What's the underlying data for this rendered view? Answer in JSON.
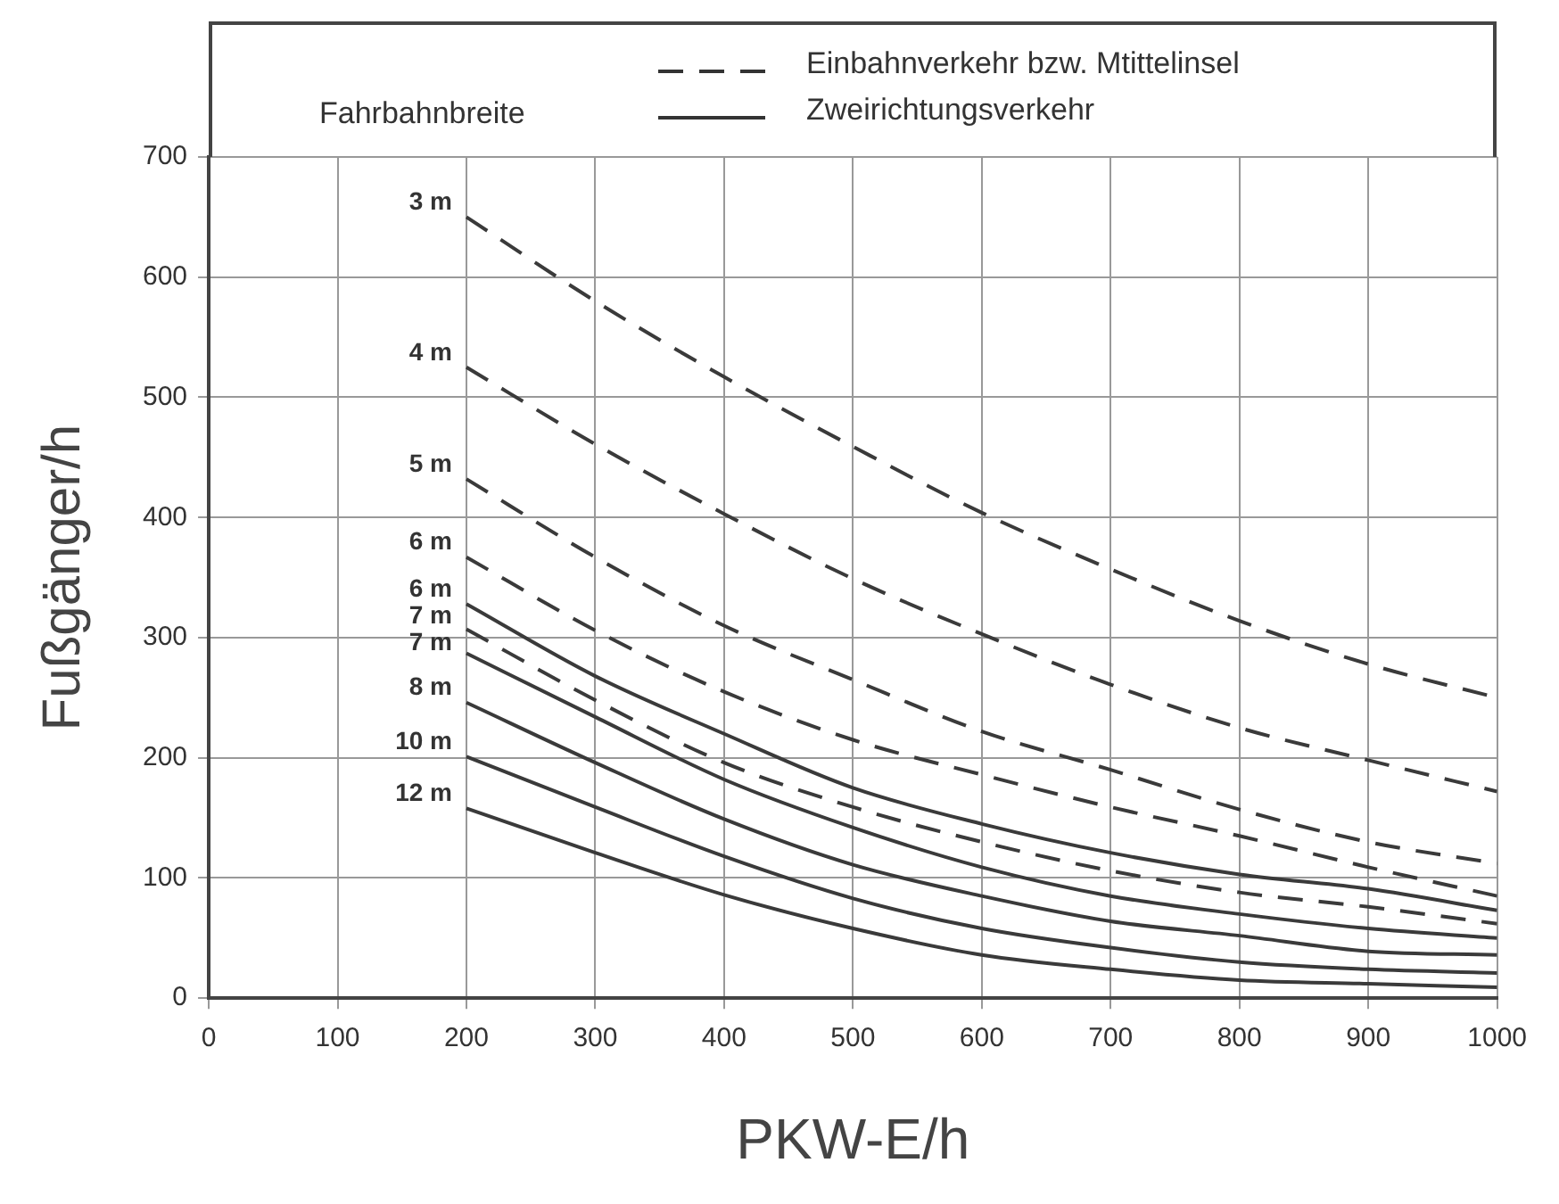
{
  "chart_data": {
    "type": "line",
    "x": [
      200,
      300,
      400,
      500,
      600,
      700,
      800,
      900,
      1000
    ],
    "series": [
      {
        "name": "3 m",
        "color": "#3a3a3a",
        "line_style": "dashed",
        "values": [
          650,
          580,
          517,
          459,
          404,
          357,
          314,
          278,
          250
        ]
      },
      {
        "name": "4 m",
        "color": "#3a3a3a",
        "line_style": "dashed",
        "values": [
          525,
          461,
          403,
          349,
          303,
          261,
          225,
          198,
          172
        ]
      },
      {
        "name": "5 m",
        "color": "#3a3a3a",
        "line_style": "dashed",
        "values": [
          432,
          367,
          310,
          265,
          222,
          190,
          157,
          130,
          112
        ]
      },
      {
        "name": "6 m",
        "color": "#3a3a3a",
        "line_style": "dashed",
        "values": [
          367,
          306,
          255,
          215,
          186,
          159,
          135,
          109,
          85
        ]
      },
      {
        "name": "6 m",
        "color": "#3a3a3a",
        "line_style": "solid",
        "values": [
          328,
          268,
          220,
          175,
          145,
          121,
          103,
          91,
          73
        ]
      },
      {
        "name": "7 m",
        "color": "#3a3a3a",
        "line_style": "dashed",
        "values": [
          307,
          248,
          196,
          159,
          130,
          106,
          88,
          76,
          62
        ]
      },
      {
        "name": "7 m",
        "color": "#3a3a3a",
        "line_style": "solid",
        "values": [
          287,
          234,
          182,
          142,
          109,
          85,
          70,
          58,
          50
        ]
      },
      {
        "name": "8 m",
        "color": "#3a3a3a",
        "line_style": "solid",
        "values": [
          246,
          196,
          149,
          111,
          85,
          64,
          52,
          39,
          36
        ]
      },
      {
        "name": "10 m",
        "color": "#3a3a3a",
        "line_style": "solid",
        "values": [
          201,
          159,
          118,
          83,
          58,
          42,
          30,
          24,
          21
        ]
      },
      {
        "name": "12 m",
        "color": "#3a3a3a",
        "line_style": "solid",
        "values": [
          158,
          121,
          86,
          58,
          36,
          24,
          15,
          12,
          9
        ]
      }
    ],
    "xlabel": "PKW-E/h",
    "ylabel": "Fußgänger/h",
    "xlim": [
      0,
      1000
    ],
    "xticks": [
      0,
      100,
      200,
      300,
      400,
      500,
      600,
      700,
      800,
      900,
      1000
    ],
    "ylim": [
      0,
      700
    ],
    "yticks": [
      0,
      100,
      200,
      300,
      400,
      500,
      600,
      700
    ],
    "grid": true,
    "legend": false,
    "marker": "none",
    "annotations": [
      "Fahrbahnbreite",
      "Einbahnverkehr bzw. Mtittelinsel",
      "Zweirichtungsverkehr"
    ]
  }
}
